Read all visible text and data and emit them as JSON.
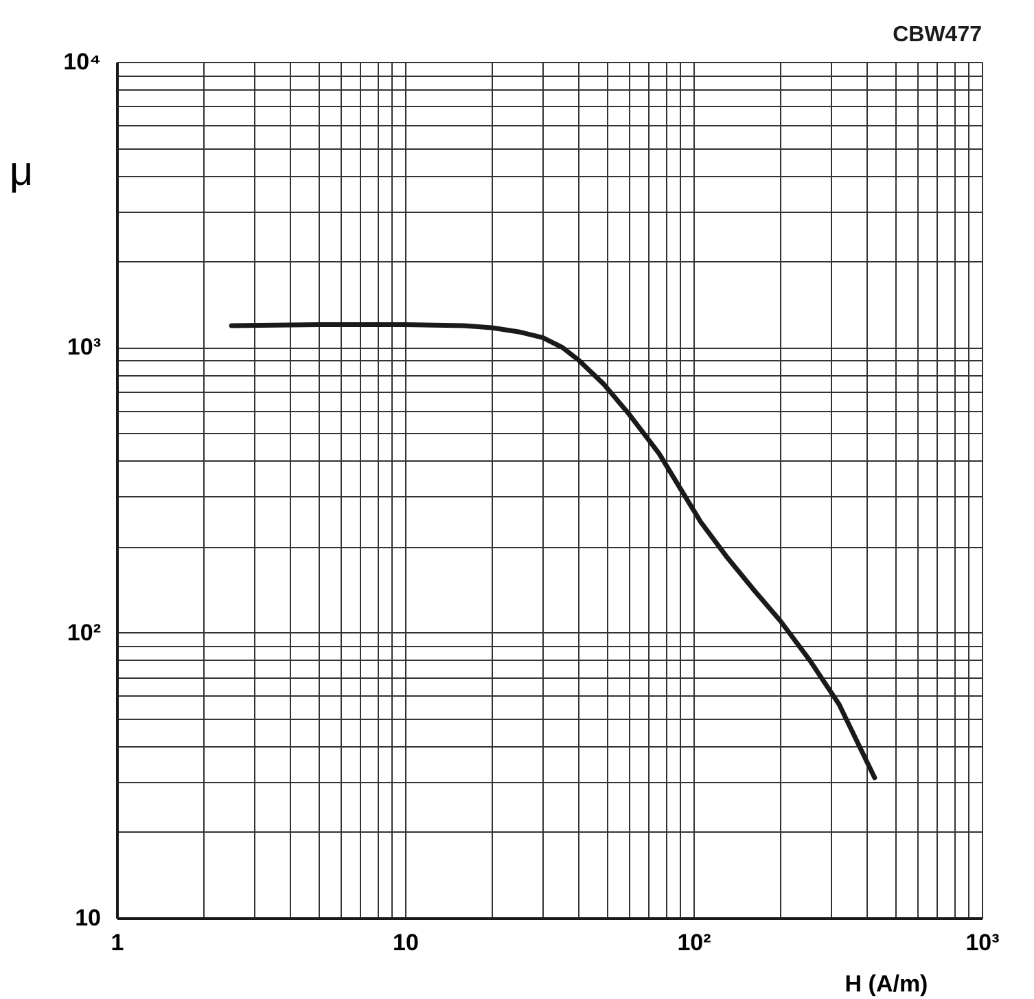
{
  "chart_data": {
    "type": "line",
    "xlabel": "H  (A/m)",
    "ylabel": "μ",
    "annotations": [
      "CBW477"
    ],
    "x": [
      2.5,
      5,
      10,
      16,
      20,
      25,
      30,
      35,
      40,
      49,
      60,
      76,
      90,
      106,
      130,
      163,
      200,
      253,
      320,
      425
    ],
    "series": [
      {
        "color": "#1a1a1a",
        "values": [
          1190,
          1200,
          1200,
          1190,
          1170,
          1130,
          1080,
          1000,
          900,
          740,
          580,
          424,
          320,
          244,
          185,
          140,
          110,
          80,
          56,
          31
        ]
      }
    ],
    "log": "xy",
    "grid": true,
    "line_style": "solid",
    "marker": "none",
    "xlim": [
      1,
      1000
    ],
    "ylim": [
      10,
      10000
    ],
    "xticks": [
      1,
      {
        "value": 2,
        "label": null
      },
      {
        "value": 3,
        "label": null
      },
      {
        "value": 4,
        "label": null
      },
      {
        "value": 5,
        "label": null
      },
      {
        "value": 6,
        "label": null
      },
      {
        "value": 7,
        "label": null
      },
      {
        "value": 8,
        "label": null
      },
      {
        "value": 9,
        "label": null
      },
      10,
      {
        "value": 20,
        "label": null
      },
      {
        "value": 30,
        "label": null
      },
      {
        "value": 40,
        "label": null
      },
      {
        "value": 50,
        "label": null
      },
      {
        "value": 60,
        "label": null
      },
      {
        "value": 70,
        "label": null
      },
      {
        "value": 80,
        "label": null
      },
      {
        "value": 90,
        "label": null
      },
      {
        "value": 100,
        "label": "10²"
      },
      {
        "value": 200,
        "label": null
      },
      {
        "value": 300,
        "label": null
      },
      {
        "value": 400,
        "label": null
      },
      {
        "value": 500,
        "label": null
      },
      {
        "value": 600,
        "label": null
      },
      {
        "value": 700,
        "label": null
      },
      {
        "value": 800,
        "label": null
      },
      {
        "value": 900,
        "label": null
      },
      {
        "value": 1000,
        "label": "10³"
      }
    ],
    "yticks": [
      10,
      {
        "value": 20,
        "label": null
      },
      {
        "value": 30,
        "label": null
      },
      {
        "value": 40,
        "label": null
      },
      {
        "value": 50,
        "label": null
      },
      {
        "value": 60,
        "label": null
      },
      {
        "value": 70,
        "label": null
      },
      {
        "value": 80,
        "label": null
      },
      {
        "value": 90,
        "label": null
      },
      {
        "value": 100,
        "label": "10²"
      },
      {
        "value": 200,
        "label": null
      },
      {
        "value": 300,
        "label": null
      },
      {
        "value": 400,
        "label": null
      },
      {
        "value": 500,
        "label": null
      },
      {
        "value": 600,
        "label": null
      },
      {
        "value": 700,
        "label": null
      },
      {
        "value": 800,
        "label": null
      },
      {
        "value": 900,
        "label": null
      },
      {
        "value": 1000,
        "label": "10³"
      },
      {
        "value": 2000,
        "label": null
      },
      {
        "value": 3000,
        "label": null
      },
      {
        "value": 4000,
        "label": null
      },
      {
        "value": 5000,
        "label": null
      },
      {
        "value": 6000,
        "label": null
      },
      {
        "value": 7000,
        "label": null
      },
      {
        "value": 8000,
        "label": null
      },
      {
        "value": 9000,
        "label": null
      },
      {
        "value": 10000,
        "label": "10⁴"
      }
    ]
  }
}
